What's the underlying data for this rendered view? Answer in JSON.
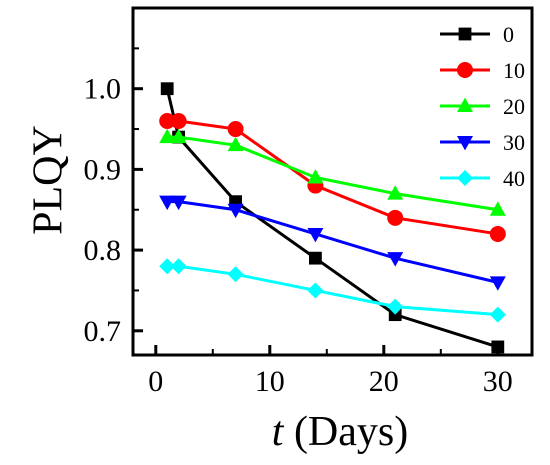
{
  "chart_data": {
    "type": "line",
    "title": "",
    "xlabel_var": "t",
    "xlabel_unit": " (Days)",
    "ylabel": "PLQY",
    "xlim": [
      -2,
      33
    ],
    "ylim": [
      0.67,
      1.1
    ],
    "xticks": [
      0,
      10,
      20,
      30
    ],
    "xtick_labels": [
      "0",
      "10",
      "20",
      "30"
    ],
    "yticks": [
      0.7,
      0.8,
      0.9,
      1.0
    ],
    "ytick_labels": [
      "0.7",
      "0.8",
      "0.9",
      "1.0"
    ],
    "grid": false,
    "legend_position": "top-right",
    "series": [
      {
        "name": "0",
        "color": "#000000",
        "marker": "square",
        "x": [
          1,
          2,
          7,
          14,
          21,
          30
        ],
        "y": [
          1.0,
          0.94,
          0.86,
          0.79,
          0.72,
          0.68
        ]
      },
      {
        "name": "10",
        "color": "#ff0000",
        "marker": "circle",
        "x": [
          1,
          2,
          7,
          14,
          21,
          30
        ],
        "y": [
          0.96,
          0.96,
          0.95,
          0.88,
          0.84,
          0.82
        ]
      },
      {
        "name": "20",
        "color": "#00ff00",
        "marker": "triangle-up",
        "x": [
          1,
          2,
          7,
          14,
          21,
          30
        ],
        "y": [
          0.94,
          0.94,
          0.93,
          0.89,
          0.87,
          0.85
        ]
      },
      {
        "name": "30",
        "color": "#0000ff",
        "marker": "triangle-down",
        "x": [
          1,
          2,
          7,
          14,
          21,
          30
        ],
        "y": [
          0.86,
          0.86,
          0.85,
          0.82,
          0.79,
          0.76
        ]
      },
      {
        "name": "40",
        "color": "#00ffff",
        "marker": "diamond",
        "x": [
          1,
          2,
          7,
          14,
          21,
          30
        ],
        "y": [
          0.78,
          0.78,
          0.77,
          0.75,
          0.73,
          0.72
        ]
      }
    ]
  }
}
